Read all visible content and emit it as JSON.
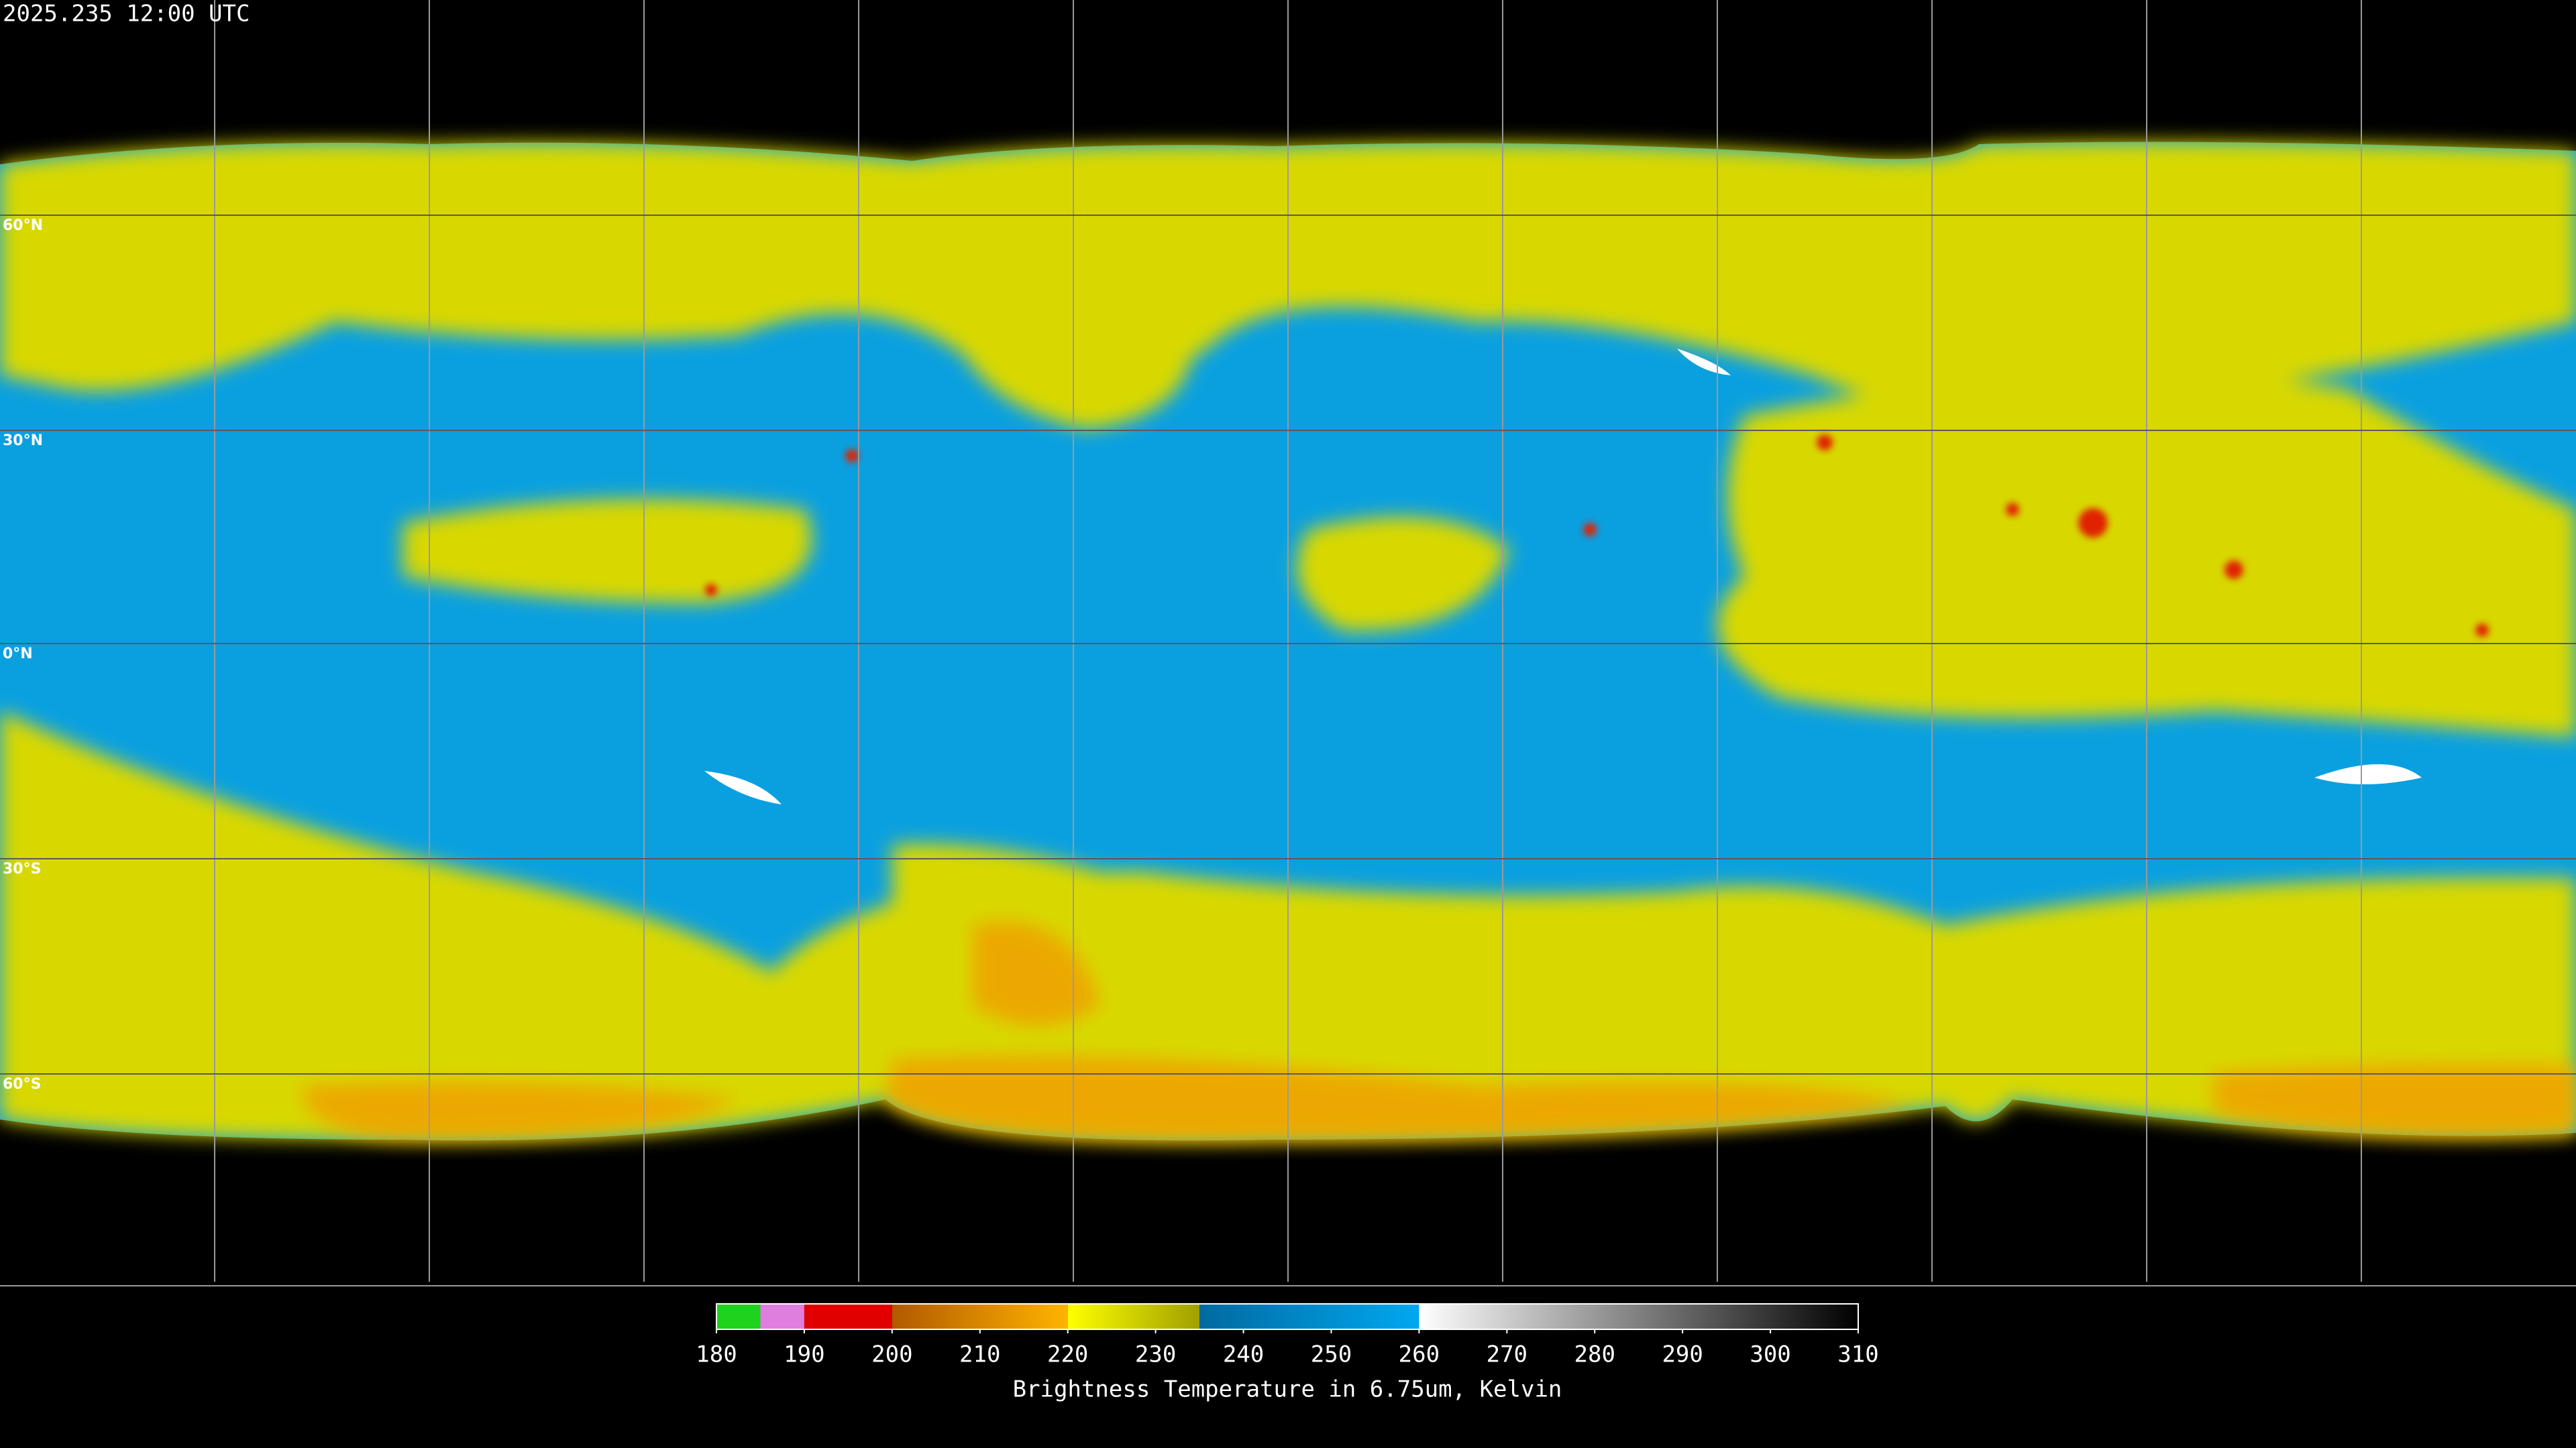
{
  "title": "2025.235 12:00 UTC",
  "lat_labels": [
    "60°N",
    "30°N",
    "0°N",
    "30°S",
    "60°S"
  ],
  "colorbar": {
    "label": "Brightness Temperature in 6.75um, Kelvin",
    "range": [
      180,
      310
    ],
    "ticks": [
      180,
      190,
      200,
      210,
      220,
      230,
      240,
      250,
      260,
      270,
      280,
      290,
      300,
      310
    ],
    "segments": [
      {
        "from": 180,
        "to": 185,
        "colors": [
          "#1ed21e",
          "#1ed21e"
        ]
      },
      {
        "from": 185,
        "to": 190,
        "colors": [
          "#e07ee0",
          "#e07ee0"
        ]
      },
      {
        "from": 190,
        "to": 200,
        "colors": [
          "#e00000",
          "#e00000"
        ]
      },
      {
        "from": 200,
        "to": 220,
        "colors": [
          "#b05a00",
          "#ffb400"
        ]
      },
      {
        "from": 220,
        "to": 235,
        "colors": [
          "#ffff00",
          "#a0a000"
        ]
      },
      {
        "from": 235,
        "to": 260,
        "colors": [
          "#006aa0",
          "#00a8f0"
        ]
      },
      {
        "from": 260,
        "to": 310,
        "colors": [
          "#ffffff",
          "#000000"
        ]
      }
    ]
  }
}
